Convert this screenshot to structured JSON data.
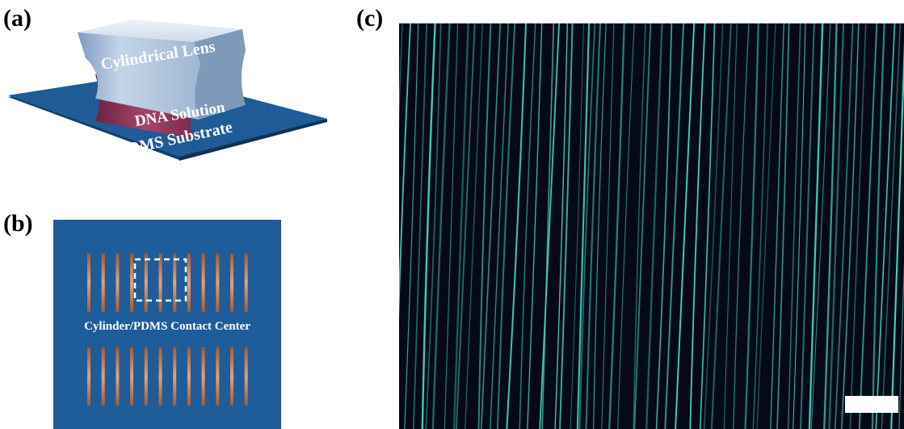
{
  "panels": {
    "a": {
      "label": "(a)",
      "lens_text": "Cylindrical  Lens",
      "solution_text": "DNA Solution",
      "substrate_text": "PDMS Substrate"
    },
    "b": {
      "label": "(b)",
      "contact_text": "Cylinder/PDMS  Contact  Center",
      "stripe_count_top": 12,
      "stripe_count_bottom": 12
    },
    "c": {
      "label": "(c)"
    }
  },
  "colors": {
    "substrate": "#1b5c94",
    "substrate_top": "#2361a0",
    "lens_light": "#dbe6f2",
    "lens_dark": "#8fa9c8",
    "dna_solution": "#8c3552",
    "stripe_copper": "#c97b4f",
    "micrograph_bg": "#060a18",
    "dna_strand": "#3fd6c0"
  }
}
